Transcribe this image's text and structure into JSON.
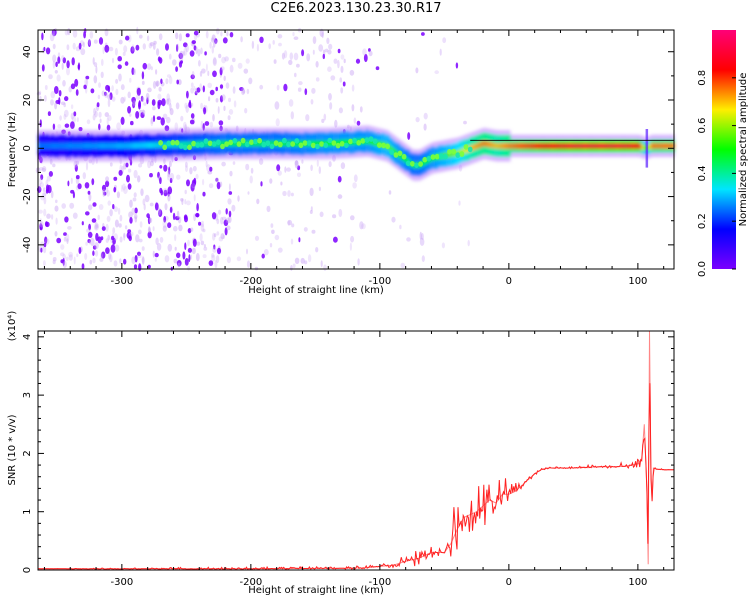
{
  "figure": {
    "title": "C2E6.2023.130.23.30.R17"
  },
  "chart_data": [
    {
      "type": "heatmap",
      "panel": "spectrogram",
      "xlabel": "Height of straight line (km)",
      "ylabel": "Frequency (Hz)",
      "xlim": [
        -365,
        128
      ],
      "ylim": [
        -50,
        49
      ],
      "xticks": [
        -300,
        -200,
        -100,
        0,
        100
      ],
      "xtick_labels": [
        "-300",
        "-200",
        "-100",
        "0",
        "100"
      ],
      "yticks": [
        -40,
        -20,
        0,
        20,
        40
      ],
      "ytick_labels": [
        "-40",
        "-20",
        "0",
        "20",
        "40"
      ],
      "grid": false,
      "colormap": [
        "#7b00ff",
        "#0000ff",
        "#00e5ff",
        "#00ff00",
        "#ffee00",
        "#ff0000",
        "#ff0077"
      ],
      "colorbar": {
        "label": "Normalized spectral amplitude",
        "range": [
          0,
          1
        ],
        "ticks": [
          0.0,
          0.2,
          0.4,
          0.6,
          0.8
        ],
        "tick_labels": [
          "0.0",
          "0.2",
          "0.4",
          "0.6",
          "0.8"
        ]
      },
      "ridge": {
        "x": [
          -365,
          -300,
          -220,
          -180,
          -140,
          -110,
          -95,
          -85,
          -75,
          -70,
          -60,
          -50,
          -40,
          -30,
          -20,
          -10,
          0,
          50,
          90,
          100,
          106,
          110,
          128
        ],
        "frequency": [
          1,
          1,
          2,
          2,
          2,
          3,
          1,
          -3,
          -7,
          -7,
          -4,
          -3,
          -2,
          0,
          2,
          1,
          1,
          1,
          1,
          1,
          0,
          1,
          1
        ],
        "amplitude": [
          0.25,
          0.3,
          0.45,
          0.45,
          0.5,
          0.5,
          0.55,
          0.5,
          0.45,
          0.45,
          0.5,
          0.55,
          0.6,
          0.7,
          0.75,
          0.7,
          0.75,
          0.9,
          0.9,
          0.85,
          0.5,
          0.75,
          0.75
        ]
      }
    },
    {
      "type": "line",
      "panel": "snr",
      "xlabel": "Height of straight line (km)",
      "ylabel": "SNR (10 * v/v)",
      "y_multiplier": "(x10⁴)",
      "xlim": [
        -365,
        128
      ],
      "ylim": [
        0,
        4.1
      ],
      "xticks": [
        -300,
        -200,
        -100,
        0,
        100
      ],
      "xtick_labels": [
        "-300",
        "-200",
        "-100",
        "0",
        "100"
      ],
      "yticks": [
        0,
        1,
        2,
        3,
        4
      ],
      "ytick_labels": [
        "0",
        "1",
        "2",
        "3",
        "4"
      ],
      "grid": false,
      "series": [
        {
          "color": "#ff2222",
          "x": [
            -365,
            -300,
            -200,
            -130,
            -110,
            -100,
            -90,
            -80,
            -70,
            -60,
            -50,
            -45,
            -40,
            -35,
            -30,
            -25,
            -20,
            -15,
            -10,
            -5,
            0,
            5,
            10,
            15,
            20,
            25,
            30,
            40,
            50,
            60,
            70,
            80,
            90,
            95,
            100,
            103,
            105,
            107,
            108,
            109,
            110,
            111,
            112,
            115,
            120,
            128
          ],
          "y": [
            0.02,
            0.02,
            0.02,
            0.03,
            0.04,
            0.06,
            0.08,
            0.15,
            0.2,
            0.3,
            0.3,
            0.45,
            0.7,
            0.9,
            0.95,
            1.0,
            1.1,
            1.2,
            1.15,
            1.3,
            1.3,
            1.35,
            1.45,
            1.55,
            1.65,
            1.72,
            1.75,
            1.75,
            1.75,
            1.76,
            1.77,
            1.77,
            1.78,
            1.8,
            1.82,
            1.9,
            2.5,
            1.4,
            0.1,
            4.1,
            1.8,
            1.2,
            1.75,
            1.73,
            1.72,
            1.72
          ],
          "peak": [
            0.02,
            0.04,
            0.05,
            0.06,
            0.08,
            0.1,
            0.14,
            0.3,
            0.45,
            0.5,
            0.45,
            0.9,
            1.4,
            1.5,
            1.6,
            1.5,
            1.75,
            1.85,
            1.7,
            1.6,
            1.55,
            1.5,
            1.6,
            1.65,
            1.7,
            1.75,
            1.78,
            1.77,
            1.78,
            1.8,
            1.8,
            1.82,
            1.85,
            1.9,
            1.95,
            2.2,
            2.95,
            1.6,
            0.2,
            4.1,
            2.4,
            1.3,
            1.78,
            1.75,
            1.73,
            1.72
          ]
        }
      ]
    }
  ]
}
